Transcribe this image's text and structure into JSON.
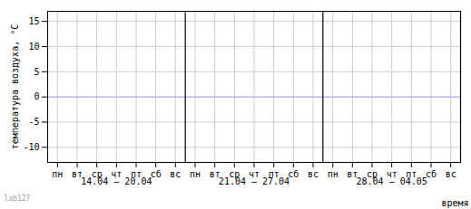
{
  "chart_data": {
    "type": "line",
    "ylabel": "температура воздуха, °С",
    "xlabel": "время",
    "categories": [
      "пн",
      "вт",
      "ср",
      "чт",
      "пт",
      "сб",
      "вс",
      "пн",
      "вт",
      "ср",
      "чт",
      "пт",
      "сб",
      "вс",
      "пн",
      "вт",
      "ср",
      "чт",
      "пт",
      "сб",
      "вс"
    ],
    "groups": [
      "14.04 – 20.04",
      "21.04 – 27.04",
      "28.04 – 04.05"
    ],
    "series": [],
    "ylim": [
      -13,
      17
    ],
    "yticks": [
      -10,
      -5,
      0,
      5,
      10,
      15
    ],
    "grid": true,
    "annotations": [
      "lab127"
    ]
  }
}
